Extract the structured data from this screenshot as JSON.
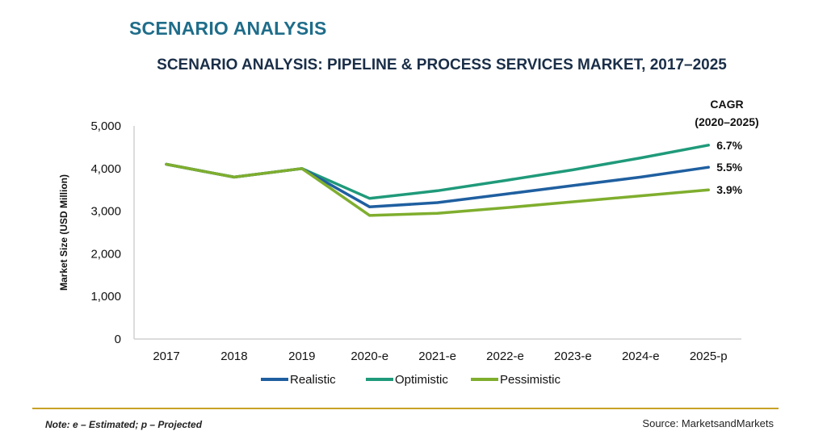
{
  "page_heading": "SCENARIO ANALYSIS",
  "footer": {
    "note": "Note: e – Estimated; p – Projected",
    "source": "Source: MarketsandMarkets"
  },
  "colors": {
    "realistic": "#1f5fa0",
    "optimistic": "#1f9a7a",
    "pessimistic": "#7fae2e",
    "axis": "#d0d0d0",
    "divider": "#c9a227"
  },
  "chart_data": {
    "type": "line",
    "title": "SCENARIO ANALYSIS: PIPELINE & PROCESS SERVICES MARKET, 2017–2025",
    "ylabel": "Market Size (USD Million)",
    "xlabel": "",
    "categories": [
      "2017",
      "2018",
      "2019",
      "2020-e",
      "2021-e",
      "2022-e",
      "2023-e",
      "2024-e",
      "2025-p"
    ],
    "ylim": [
      0,
      5000
    ],
    "yticks": [
      0,
      1000,
      2000,
      3000,
      4000,
      5000
    ],
    "ytick_labels": [
      "0",
      "1,000",
      "2,000",
      "3,000",
      "4,000",
      "5,000"
    ],
    "grid": false,
    "legend_position": "bottom",
    "cagr_header": [
      "CAGR",
      "(2020–2025)"
    ],
    "series": [
      {
        "name": "Realistic",
        "color": "#1f5fa0",
        "cagr": "5.5%",
        "values": [
          4100,
          3800,
          4000,
          3100,
          3200,
          3400,
          3600,
          3800,
          4030
        ]
      },
      {
        "name": "Optimistic",
        "color": "#1f9a7a",
        "cagr": "6.7%",
        "values": [
          4100,
          3800,
          4000,
          3300,
          3480,
          3720,
          3970,
          4250,
          4550
        ]
      },
      {
        "name": "Pessimistic",
        "color": "#7fae2e",
        "cagr": "3.9%",
        "values": [
          4100,
          3800,
          4000,
          2900,
          2950,
          3080,
          3220,
          3360,
          3500
        ]
      }
    ]
  }
}
